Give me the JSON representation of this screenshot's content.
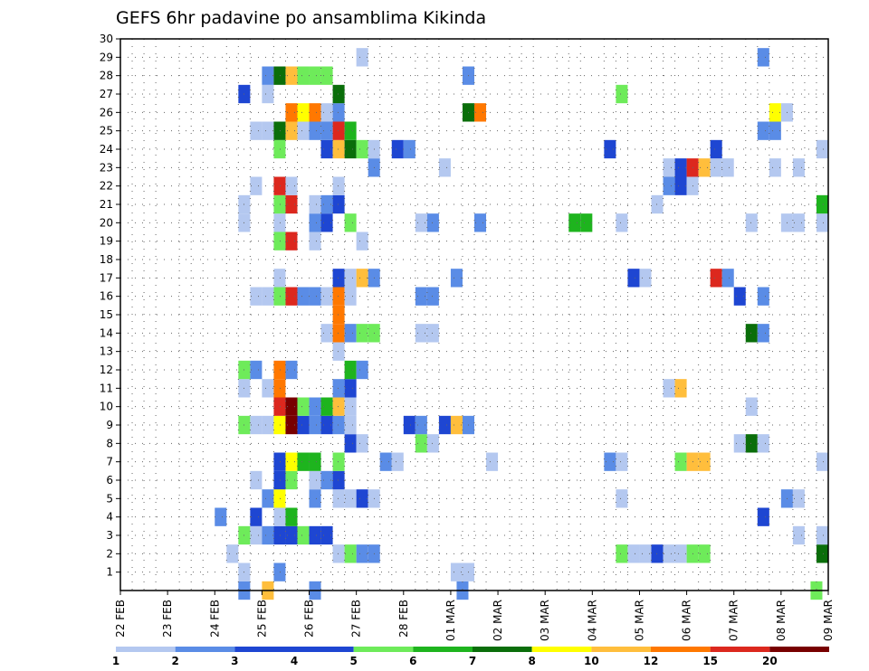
{
  "chart_data": {
    "type": "heatmap",
    "title": "GEFS 6hr padavine po ansamblima Kikinda",
    "xlabel": "",
    "ylabel": "",
    "x_tick_labels": [
      "22 FEB",
      "23 FEB",
      "24 FEB",
      "25 FEB",
      "26 FEB",
      "27 FEB",
      "28 FEB",
      "01 MAR",
      "02 MAR",
      "03 MAR",
      "04 MAR",
      "05 MAR",
      "06 MAR",
      "07 MAR",
      "08 MAR",
      "09 MAR"
    ],
    "y_tick_labels": [
      "1",
      "2",
      "3",
      "4",
      "5",
      "6",
      "7",
      "8",
      "9",
      "10",
      "11",
      "12",
      "13",
      "14",
      "15",
      "16",
      "17",
      "18",
      "19",
      "20",
      "21",
      "22",
      "23",
      "24",
      "25",
      "26",
      "27",
      "28",
      "29",
      "30"
    ],
    "xlim": [
      0,
      60
    ],
    "ylim": [
      0,
      30
    ],
    "grid": true,
    "colorbar": {
      "labels": [
        "1",
        "2",
        "3",
        "4",
        "5",
        "6",
        "7",
        "8",
        "10",
        "12",
        "15",
        "20"
      ],
      "colors": [
        "#b4c8f0",
        "#5a8ce6",
        "#1e46d2",
        "#1e46d2",
        "#6eeb5a",
        "#1eb41e",
        "#0a6e0a",
        "#ffff00",
        "#ffbe3c",
        "#ff7800",
        "#dc281e",
        "#780000"
      ]
    },
    "values": [
      [
        10.5,
        0,
        2
      ],
      [
        12.5,
        0,
        10
      ],
      [
        16.5,
        0,
        2
      ],
      [
        29,
        0,
        2
      ],
      [
        59,
        0,
        5
      ],
      [
        10.5,
        1,
        1
      ],
      [
        13.5,
        1,
        2
      ],
      [
        28.5,
        1,
        1
      ],
      [
        29.5,
        1,
        1
      ],
      [
        9.5,
        2,
        1
      ],
      [
        18.5,
        2,
        1
      ],
      [
        19.5,
        2,
        5
      ],
      [
        20.5,
        2,
        2
      ],
      [
        21.5,
        2,
        2
      ],
      [
        42.5,
        2,
        5
      ],
      [
        43.5,
        2,
        1
      ],
      [
        44.5,
        2,
        1
      ],
      [
        45.5,
        2,
        3
      ],
      [
        46.5,
        2,
        1
      ],
      [
        47.5,
        2,
        1
      ],
      [
        48.5,
        2,
        5
      ],
      [
        49.5,
        2,
        5
      ],
      [
        59.5,
        2,
        7
      ],
      [
        10.5,
        3,
        5
      ],
      [
        11.5,
        3,
        1
      ],
      [
        12.5,
        3,
        2
      ],
      [
        13.5,
        3,
        3
      ],
      [
        14.5,
        3,
        3
      ],
      [
        15.5,
        3,
        5
      ],
      [
        16.5,
        3,
        3
      ],
      [
        17.5,
        3,
        3
      ],
      [
        57.5,
        3,
        1
      ],
      [
        59.5,
        3,
        1
      ],
      [
        8.5,
        4,
        2
      ],
      [
        11.5,
        4,
        3
      ],
      [
        13.5,
        4,
        1
      ],
      [
        14.5,
        4,
        6
      ],
      [
        54.5,
        4,
        3
      ],
      [
        12.5,
        5,
        2
      ],
      [
        13.5,
        5,
        8
      ],
      [
        16.5,
        5,
        2
      ],
      [
        18.5,
        5,
        1
      ],
      [
        19.5,
        5,
        1
      ],
      [
        20.5,
        5,
        3
      ],
      [
        21.5,
        5,
        1
      ],
      [
        42.5,
        5,
        1
      ],
      [
        56.5,
        5,
        2
      ],
      [
        57.5,
        5,
        1
      ],
      [
        11.5,
        6,
        1
      ],
      [
        13.5,
        6,
        3
      ],
      [
        14.5,
        6,
        5
      ],
      [
        16.5,
        6,
        1
      ],
      [
        17.5,
        6,
        2
      ],
      [
        18.5,
        6,
        3
      ],
      [
        13.5,
        7,
        3
      ],
      [
        14.5,
        7,
        8
      ],
      [
        15.5,
        7,
        6
      ],
      [
        16.5,
        7,
        6
      ],
      [
        18.5,
        7,
        5
      ],
      [
        22.5,
        7,
        2
      ],
      [
        23.5,
        7,
        1
      ],
      [
        31.5,
        7,
        1
      ],
      [
        41.5,
        7,
        2
      ],
      [
        42.5,
        7,
        1
      ],
      [
        47.5,
        7,
        5
      ],
      [
        48.5,
        7,
        10
      ],
      [
        49.5,
        7,
        10
      ],
      [
        59.5,
        7,
        1
      ],
      [
        19.5,
        8,
        3
      ],
      [
        20.5,
        8,
        1
      ],
      [
        25.5,
        8,
        5
      ],
      [
        26.5,
        8,
        1
      ],
      [
        52.5,
        8,
        1
      ],
      [
        53.5,
        8,
        7
      ],
      [
        54.5,
        8,
        1
      ],
      [
        10.5,
        9,
        5
      ],
      [
        11.5,
        9,
        1
      ],
      [
        12.5,
        9,
        1
      ],
      [
        13.5,
        9,
        8
      ],
      [
        14.5,
        9,
        20
      ],
      [
        15.5,
        9,
        3
      ],
      [
        16.5,
        9,
        2
      ],
      [
        17.5,
        9,
        3
      ],
      [
        18.5,
        9,
        2
      ],
      [
        19.5,
        9,
        1
      ],
      [
        24.5,
        9,
        3
      ],
      [
        25.5,
        9,
        2
      ],
      [
        27.5,
        9,
        3
      ],
      [
        28.5,
        9,
        10
      ],
      [
        29.5,
        9,
        2
      ],
      [
        13.5,
        10,
        15
      ],
      [
        14.5,
        10,
        20
      ],
      [
        15.5,
        10,
        5
      ],
      [
        16.5,
        10,
        2
      ],
      [
        17.5,
        10,
        6
      ],
      [
        18.5,
        10,
        10
      ],
      [
        19.5,
        10,
        1
      ],
      [
        53.5,
        10,
        1
      ],
      [
        10.5,
        11,
        1
      ],
      [
        12.5,
        11,
        1
      ],
      [
        13.5,
        11,
        12
      ],
      [
        18.5,
        11,
        2
      ],
      [
        19.5,
        11,
        3
      ],
      [
        46.5,
        11,
        1
      ],
      [
        47.5,
        11,
        10
      ],
      [
        10.5,
        12,
        5
      ],
      [
        11.5,
        12,
        2
      ],
      [
        13.5,
        12,
        12
      ],
      [
        14.5,
        12,
        2
      ],
      [
        19.5,
        12,
        6
      ],
      [
        20.5,
        12,
        2
      ],
      [
        18.5,
        13,
        1
      ],
      [
        17.5,
        14,
        1
      ],
      [
        18.5,
        14,
        12
      ],
      [
        19.5,
        14,
        2
      ],
      [
        20.5,
        14,
        5
      ],
      [
        21.5,
        14,
        5
      ],
      [
        25.5,
        14,
        1
      ],
      [
        26.5,
        14,
        1
      ],
      [
        53.5,
        14,
        7
      ],
      [
        54.5,
        14,
        2
      ],
      [
        18.5,
        15,
        12
      ],
      [
        11.5,
        16,
        1
      ],
      [
        12.5,
        16,
        1
      ],
      [
        13.5,
        16,
        5
      ],
      [
        14.5,
        16,
        15
      ],
      [
        15.5,
        16,
        2
      ],
      [
        16.5,
        16,
        2
      ],
      [
        17.5,
        16,
        1
      ],
      [
        18.5,
        16,
        12
      ],
      [
        19.5,
        16,
        1
      ],
      [
        25.5,
        16,
        2
      ],
      [
        26.5,
        16,
        2
      ],
      [
        52.5,
        16,
        3
      ],
      [
        54.5,
        16,
        2
      ],
      [
        13.5,
        17,
        1
      ],
      [
        18.5,
        17,
        3
      ],
      [
        19.5,
        17,
        1
      ],
      [
        20.5,
        17,
        10
      ],
      [
        21.5,
        17,
        2
      ],
      [
        28.5,
        17,
        2
      ],
      [
        43.5,
        17,
        3
      ],
      [
        44.5,
        17,
        1
      ],
      [
        50.5,
        17,
        15
      ],
      [
        51.5,
        17,
        2
      ],
      [
        13.5,
        19,
        5
      ],
      [
        14.5,
        19,
        15
      ],
      [
        16.5,
        19,
        1
      ],
      [
        20.5,
        19,
        1
      ],
      [
        10.5,
        20,
        1
      ],
      [
        13.5,
        20,
        1
      ],
      [
        16.5,
        20,
        2
      ],
      [
        17.5,
        20,
        3
      ],
      [
        19.5,
        20,
        5
      ],
      [
        25.5,
        20,
        1
      ],
      [
        26.5,
        20,
        2
      ],
      [
        30.5,
        20,
        2
      ],
      [
        38.5,
        20,
        6
      ],
      [
        39.5,
        20,
        6
      ],
      [
        42.5,
        20,
        1
      ],
      [
        53.5,
        20,
        1
      ],
      [
        56.5,
        20,
        1
      ],
      [
        57.5,
        20,
        1
      ],
      [
        59.5,
        20,
        1
      ],
      [
        10.5,
        21,
        1
      ],
      [
        13.5,
        21,
        5
      ],
      [
        14.5,
        21,
        15
      ],
      [
        16.5,
        21,
        1
      ],
      [
        17.5,
        21,
        2
      ],
      [
        18.5,
        21,
        3
      ],
      [
        45.5,
        21,
        1
      ],
      [
        59.5,
        21,
        6
      ],
      [
        11.5,
        22,
        1
      ],
      [
        13.5,
        22,
        15
      ],
      [
        14.5,
        22,
        1
      ],
      [
        18.5,
        22,
        1
      ],
      [
        46.5,
        22,
        2
      ],
      [
        47.5,
        22,
        3
      ],
      [
        48.5,
        22,
        1
      ],
      [
        21.5,
        23,
        2
      ],
      [
        27.5,
        23,
        1
      ],
      [
        46.5,
        23,
        1
      ],
      [
        47.5,
        23,
        3
      ],
      [
        48.5,
        23,
        15
      ],
      [
        49.5,
        23,
        10
      ],
      [
        50.5,
        23,
        1
      ],
      [
        51.5,
        23,
        1
      ],
      [
        55.5,
        23,
        1
      ],
      [
        57.5,
        23,
        1
      ],
      [
        13.5,
        24,
        5
      ],
      [
        17.5,
        24,
        3
      ],
      [
        18.5,
        24,
        10
      ],
      [
        19.5,
        24,
        7
      ],
      [
        20.5,
        24,
        5
      ],
      [
        21.5,
        24,
        1
      ],
      [
        23.5,
        24,
        3
      ],
      [
        24.5,
        24,
        2
      ],
      [
        41.5,
        24,
        3
      ],
      [
        50.5,
        24,
        3
      ],
      [
        59.5,
        24,
        1
      ],
      [
        11.5,
        25,
        1
      ],
      [
        12.5,
        25,
        1
      ],
      [
        13.5,
        25,
        7
      ],
      [
        14.5,
        25,
        10
      ],
      [
        15.5,
        25,
        1
      ],
      [
        16.5,
        25,
        2
      ],
      [
        17.5,
        25,
        2
      ],
      [
        18.5,
        25,
        15
      ],
      [
        19.5,
        25,
        6
      ],
      [
        54.5,
        25,
        2
      ],
      [
        55.5,
        25,
        2
      ],
      [
        14.5,
        26,
        12
      ],
      [
        15.5,
        26,
        8
      ],
      [
        16.5,
        26,
        12
      ],
      [
        17.5,
        26,
        1
      ],
      [
        18.5,
        26,
        2
      ],
      [
        29.5,
        26,
        7
      ],
      [
        30.5,
        26,
        12
      ],
      [
        55.5,
        26,
        8
      ],
      [
        56.5,
        26,
        1
      ],
      [
        10.5,
        27,
        3
      ],
      [
        12.5,
        27,
        1
      ],
      [
        18.5,
        27,
        7
      ],
      [
        42.5,
        27,
        5
      ],
      [
        12.5,
        28,
        2
      ],
      [
        13.5,
        28,
        7
      ],
      [
        14.5,
        28,
        10
      ],
      [
        15.5,
        28,
        5
      ],
      [
        16.5,
        28,
        5
      ],
      [
        17.5,
        28,
        5
      ],
      [
        29.5,
        28,
        2
      ],
      [
        20.5,
        29,
        1
      ],
      [
        54.5,
        29,
        2
      ]
    ]
  }
}
